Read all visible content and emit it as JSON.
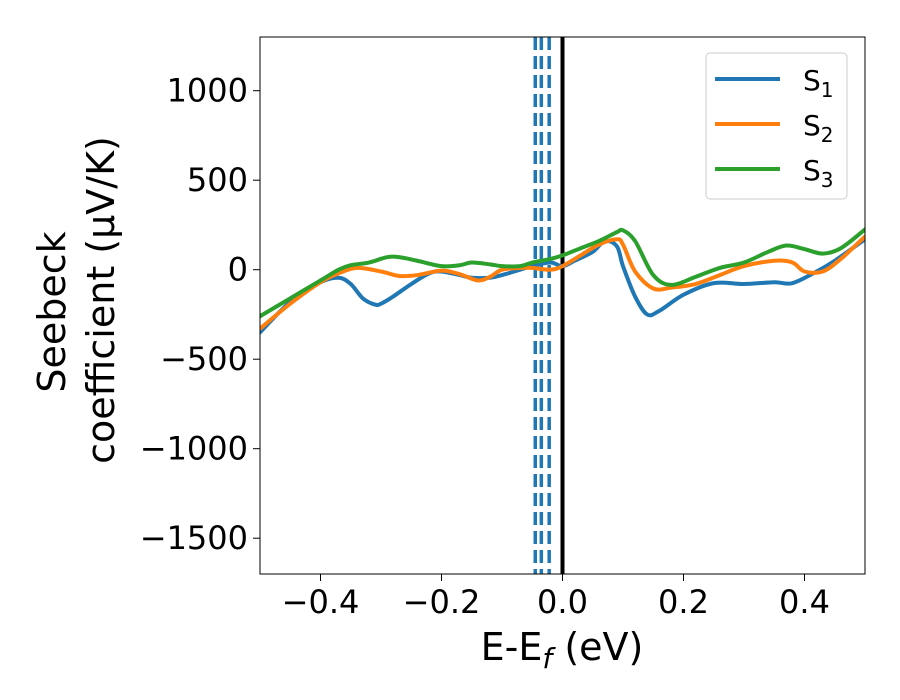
{
  "chart_data": {
    "type": "line",
    "xlabel": "E-E",
    "xlabel_sub": "f",
    "xlabel_unit": " (eV)",
    "ylabel_line1": "Seebeck",
    "ylabel_line2": "coefficient  (μV/K)",
    "xlim": [
      -0.5,
      0.5
    ],
    "ylim": [
      -1700,
      1300
    ],
    "xticks": [
      -0.4,
      -0.2,
      0.0,
      0.2,
      0.4
    ],
    "xtick_labels": [
      "−0.4",
      "−0.2",
      "0.0",
      "0.2",
      "0.4"
    ],
    "yticks": [
      1000,
      500,
      0,
      -500,
      -1000,
      -1500
    ],
    "ytick_labels": [
      "1000",
      "500",
      "0",
      "−500",
      "−1000",
      "−1500"
    ],
    "grid": false,
    "legend_position": "top-right",
    "vlines": [
      {
        "x": -0.045,
        "style": "dashed",
        "color": "#1f77b4"
      },
      {
        "x": -0.035,
        "style": "dashed",
        "color": "#1f77b4"
      },
      {
        "x": -0.022,
        "style": "dashed",
        "color": "#1f77b4"
      },
      {
        "x": 0.0,
        "style": "solid",
        "color": "#000000"
      }
    ],
    "series": [
      {
        "name": "S",
        "sub": "1",
        "color": "#1f77b4",
        "x": [
          -0.5,
          -0.45,
          -0.4,
          -0.37,
          -0.35,
          -0.33,
          -0.31,
          -0.3,
          -0.28,
          -0.25,
          -0.22,
          -0.2,
          -0.17,
          -0.15,
          -0.12,
          -0.1,
          -0.07,
          -0.05,
          -0.02,
          0.0,
          0.02,
          0.05,
          0.07,
          0.09,
          0.1,
          0.12,
          0.14,
          0.16,
          0.2,
          0.25,
          0.3,
          0.35,
          0.38,
          0.42,
          0.45,
          0.5
        ],
        "y": [
          -350,
          -180,
          -70,
          -45,
          -80,
          -160,
          -195,
          -190,
          -150,
          -80,
          -20,
          -10,
          -30,
          -45,
          -45,
          -30,
          0,
          20,
          40,
          20,
          50,
          100,
          160,
          130,
          20,
          -150,
          -250,
          -230,
          -140,
          -75,
          -80,
          -70,
          -75,
          -10,
          50,
          170
        ]
      },
      {
        "name": "S",
        "sub": "2",
        "color": "#ff7f0e",
        "x": [
          -0.5,
          -0.45,
          -0.4,
          -0.37,
          -0.34,
          -0.3,
          -0.27,
          -0.24,
          -0.2,
          -0.17,
          -0.14,
          -0.12,
          -0.1,
          -0.07,
          -0.05,
          -0.02,
          0.0,
          0.03,
          0.06,
          0.09,
          0.1,
          0.12,
          0.15,
          0.18,
          0.22,
          0.26,
          0.3,
          0.35,
          0.38,
          0.4,
          0.43,
          0.46,
          0.5
        ],
        "y": [
          -330,
          -190,
          -70,
          -20,
          10,
          -10,
          -35,
          -30,
          -5,
          -25,
          -60,
          -40,
          0,
          10,
          10,
          0,
          20,
          80,
          140,
          170,
          140,
          -10,
          -105,
          -100,
          -80,
          -30,
          20,
          50,
          40,
          -10,
          -10,
          60,
          185
        ]
      },
      {
        "name": "S",
        "sub": "3",
        "color": "#2ca02c",
        "x": [
          -0.5,
          -0.45,
          -0.4,
          -0.37,
          -0.35,
          -0.32,
          -0.29,
          -0.27,
          -0.24,
          -0.2,
          -0.17,
          -0.15,
          -0.12,
          -0.1,
          -0.07,
          -0.05,
          -0.02,
          0.0,
          0.03,
          0.06,
          0.09,
          0.1,
          0.12,
          0.15,
          0.18,
          0.22,
          0.26,
          0.3,
          0.34,
          0.37,
          0.4,
          0.43,
          0.46,
          0.5
        ],
        "y": [
          -260,
          -160,
          -60,
          0,
          25,
          40,
          70,
          70,
          50,
          20,
          25,
          40,
          30,
          20,
          20,
          40,
          60,
          80,
          120,
          160,
          210,
          220,
          160,
          -30,
          -85,
          -40,
          10,
          40,
          100,
          135,
          115,
          90,
          120,
          225
        ]
      }
    ]
  }
}
